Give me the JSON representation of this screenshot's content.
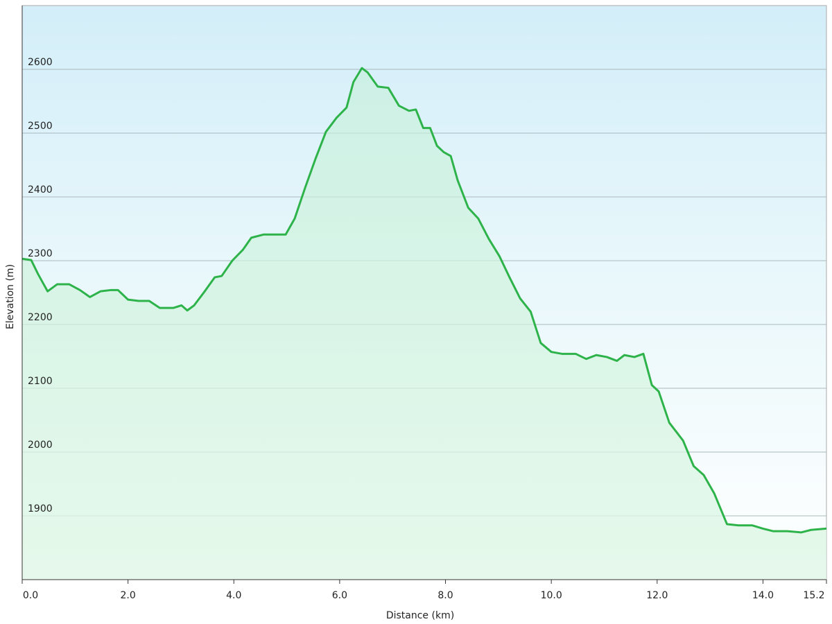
{
  "chart_data": {
    "type": "area",
    "x_label": "Distance  (km)",
    "y_label": "Elevation (m)",
    "x": [
      0,
      0.17,
      0.3,
      0.48,
      0.66,
      0.89,
      1.09,
      1.28,
      1.48,
      1.68,
      1.81,
      2.0,
      2.2,
      2.4,
      2.6,
      2.86,
      3.01,
      3.12,
      3.25,
      3.45,
      3.64,
      3.77,
      3.97,
      4.17,
      4.33,
      4.56,
      4.76,
      4.98,
      5.15,
      5.35,
      5.54,
      5.74,
      5.94,
      6.13,
      6.26,
      6.42,
      6.53,
      6.72,
      6.92,
      7.12,
      7.31,
      7.44,
      7.58,
      7.71,
      7.84,
      7.97,
      8.1,
      8.23,
      8.43,
      8.62,
      8.82,
      9.02,
      9.21,
      9.41,
      9.61,
      9.8,
      10.0,
      10.2,
      10.46,
      10.66,
      10.85,
      11.05,
      11.24,
      11.38,
      11.57,
      11.74,
      11.9,
      12.03,
      12.23,
      12.49,
      12.69,
      12.88,
      13.08,
      13.32,
      13.54,
      13.8,
      14.0,
      14.19,
      14.46,
      14.72,
      14.91,
      15.2
    ],
    "series": [
      {
        "color": "#2db34a",
        "values": [
          2303,
          2301,
          2279,
          2252,
          2263,
          2263,
          2254,
          2243,
          2252,
          2254,
          2254,
          2239,
          2237,
          2237,
          2226,
          2226,
          2230,
          2222,
          2230,
          2252,
          2274,
          2276,
          2300,
          2317,
          2336,
          2341,
          2341,
          2341,
          2366,
          2415,
          2459,
          2502,
          2524,
          2540,
          2580,
          2602,
          2595,
          2573,
          2571,
          2543,
          2535,
          2537,
          2508,
          2508,
          2480,
          2470,
          2464,
          2426,
          2383,
          2366,
          2334,
          2307,
          2274,
          2241,
          2220,
          2171,
          2157,
          2154,
          2154,
          2146,
          2152,
          2149,
          2143,
          2152,
          2149,
          2154,
          2105,
          2095,
          2046,
          2018,
          1978,
          1964,
          1935,
          1887,
          1885,
          1885,
          1880,
          1876,
          1876,
          1874,
          1878,
          1880
        ]
      }
    ],
    "xlim": [
      0,
      15.2
    ],
    "xticks": [
      {
        "value": 0,
        "label": "0.0"
      },
      {
        "value": 2,
        "label": "2.0"
      },
      {
        "value": 4,
        "label": "4.0"
      },
      {
        "value": 6,
        "label": "6.0"
      },
      {
        "value": 8,
        "label": "8.0"
      },
      {
        "value": 10,
        "label": "10.0"
      },
      {
        "value": 12,
        "label": "12.0"
      },
      {
        "value": 14,
        "label": "14.0"
      },
      {
        "value": 15.2,
        "label": "15.2"
      }
    ],
    "ylim": [
      1800,
      2700
    ],
    "yticks": [
      1900,
      2000,
      2100,
      2200,
      2300,
      2400,
      2500,
      2600
    ],
    "grid": true
  }
}
